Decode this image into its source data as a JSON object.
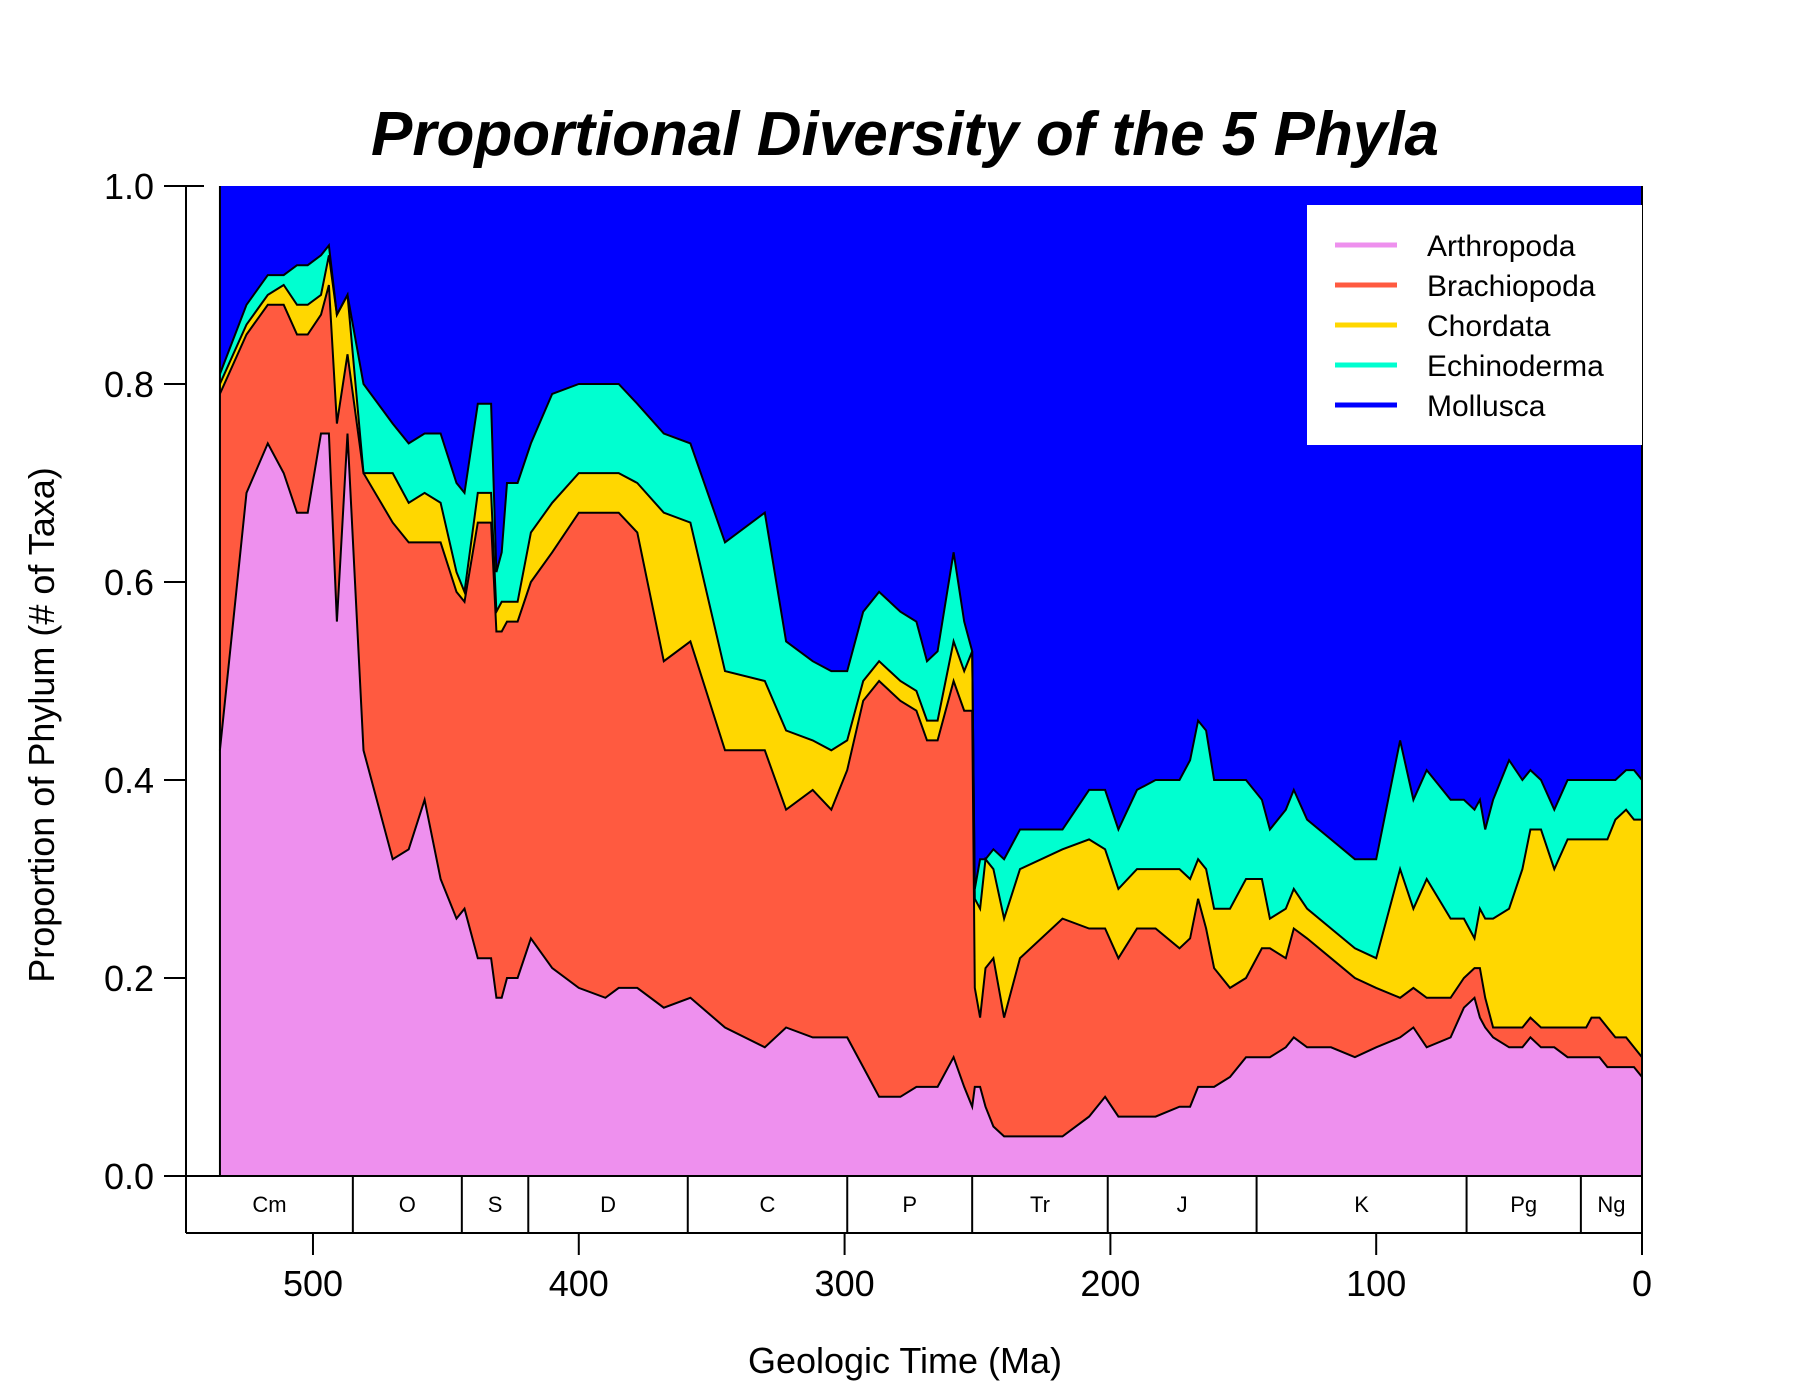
{
  "chart_data": {
    "type": "area",
    "stacked": true,
    "normalized": true,
    "title": "Proportional Diversity of the 5 Phyla",
    "xlabel": "Geologic Time (Ma)",
    "ylabel": "Proportion of Phylum (# of Taxa)",
    "xlim": [
      541,
      0
    ],
    "ylim": [
      0,
      1
    ],
    "x_reversed": true,
    "xticks": [
      500,
      400,
      300,
      200,
      100,
      0
    ],
    "yticks": [
      "0.0",
      "0.2",
      "0.4",
      "0.6",
      "0.8",
      "1.0"
    ],
    "grid": false,
    "legend_position": "top-right",
    "periods": [
      {
        "label": "Cm",
        "start": 541,
        "end": 485
      },
      {
        "label": "O",
        "start": 485,
        "end": 444
      },
      {
        "label": "S",
        "start": 444,
        "end": 419
      },
      {
        "label": "D",
        "start": 419,
        "end": 359
      },
      {
        "label": "C",
        "start": 359,
        "end": 299
      },
      {
        "label": "P",
        "start": 299,
        "end": 252
      },
      {
        "label": "Tr",
        "start": 252,
        "end": 201
      },
      {
        "label": "J",
        "start": 201,
        "end": 145
      },
      {
        "label": "K",
        "start": 145,
        "end": 66
      },
      {
        "label": "Pg",
        "start": 66,
        "end": 23
      },
      {
        "label": "Ng",
        "start": 23,
        "end": 0
      }
    ],
    "x": [
      535,
      525,
      517,
      511,
      506,
      502,
      497,
      494,
      491,
      487,
      481,
      470,
      464,
      458,
      452,
      446,
      443,
      438,
      433,
      431,
      429,
      427,
      423,
      418,
      410,
      400,
      390,
      385,
      378,
      368,
      358,
      345,
      330,
      322,
      312,
      305,
      299,
      293,
      287,
      279,
      273,
      269,
      265,
      259,
      255,
      252,
      251,
      249,
      247,
      244,
      240,
      234,
      218,
      208,
      202,
      197,
      190,
      183,
      174,
      170,
      167,
      164,
      161,
      155,
      149,
      143,
      140,
      134,
      131,
      126,
      117,
      108,
      100,
      91,
      86,
      81,
      72,
      67,
      63,
      61,
      59,
      56,
      50,
      45,
      42,
      38,
      33,
      28,
      23,
      21,
      19,
      16,
      13,
      10,
      6,
      3,
      0
    ],
    "series": [
      {
        "name": "Arthropoda",
        "color": "#EE90EE",
        "values": [
          0.43,
          0.69,
          0.74,
          0.71,
          0.67,
          0.67,
          0.75,
          0.75,
          0.56,
          0.75,
          0.43,
          0.32,
          0.33,
          0.38,
          0.3,
          0.26,
          0.27,
          0.22,
          0.22,
          0.18,
          0.18,
          0.2,
          0.2,
          0.24,
          0.21,
          0.19,
          0.18,
          0.19,
          0.19,
          0.17,
          0.18,
          0.15,
          0.13,
          0.15,
          0.14,
          0.14,
          0.14,
          0.11,
          0.08,
          0.08,
          0.09,
          0.09,
          0.09,
          0.12,
          0.09,
          0.07,
          0.09,
          0.09,
          0.07,
          0.05,
          0.04,
          0.04,
          0.04,
          0.06,
          0.08,
          0.06,
          0.06,
          0.06,
          0.07,
          0.07,
          0.09,
          0.09,
          0.09,
          0.1,
          0.12,
          0.12,
          0.12,
          0.13,
          0.14,
          0.13,
          0.13,
          0.12,
          0.13,
          0.14,
          0.15,
          0.13,
          0.14,
          0.17,
          0.18,
          0.16,
          0.15,
          0.14,
          0.13,
          0.13,
          0.14,
          0.13,
          0.13,
          0.12,
          0.12,
          0.12,
          0.12,
          0.12,
          0.11,
          0.11,
          0.11,
          0.11,
          0.1
        ]
      },
      {
        "name": "Brachiopoda",
        "color": "#FF5A40",
        "values": [
          0.36,
          0.16,
          0.14,
          0.17,
          0.18,
          0.18,
          0.12,
          0.15,
          0.2,
          0.08,
          0.28,
          0.34,
          0.31,
          0.26,
          0.34,
          0.33,
          0.31,
          0.44,
          0.44,
          0.37,
          0.37,
          0.36,
          0.36,
          0.36,
          0.42,
          0.48,
          0.49,
          0.48,
          0.46,
          0.35,
          0.36,
          0.28,
          0.3,
          0.22,
          0.25,
          0.23,
          0.27,
          0.37,
          0.42,
          0.4,
          0.38,
          0.35,
          0.35,
          0.38,
          0.38,
          0.4,
          0.1,
          0.07,
          0.14,
          0.17,
          0.12,
          0.18,
          0.22,
          0.19,
          0.17,
          0.16,
          0.19,
          0.19,
          0.16,
          0.17,
          0.19,
          0.16,
          0.12,
          0.09,
          0.08,
          0.11,
          0.11,
          0.09,
          0.11,
          0.11,
          0.09,
          0.08,
          0.06,
          0.04,
          0.04,
          0.05,
          0.04,
          0.03,
          0.03,
          0.05,
          0.03,
          0.01,
          0.02,
          0.02,
          0.02,
          0.02,
          0.02,
          0.03,
          0.03,
          0.03,
          0.04,
          0.04,
          0.04,
          0.03,
          0.03,
          0.02,
          0.02
        ]
      },
      {
        "name": "Chordata",
        "color": "#FFD700",
        "values": [
          0.01,
          0.01,
          0.01,
          0.02,
          0.03,
          0.03,
          0.02,
          0.03,
          0.11,
          0.06,
          0.0,
          0.05,
          0.04,
          0.05,
          0.04,
          0.02,
          0.01,
          0.03,
          0.03,
          0.02,
          0.03,
          0.02,
          0.02,
          0.05,
          0.05,
          0.04,
          0.04,
          0.04,
          0.05,
          0.15,
          0.12,
          0.08,
          0.07,
          0.08,
          0.05,
          0.06,
          0.03,
          0.02,
          0.02,
          0.02,
          0.02,
          0.02,
          0.02,
          0.04,
          0.04,
          0.06,
          0.09,
          0.11,
          0.11,
          0.09,
          0.1,
          0.09,
          0.07,
          0.09,
          0.08,
          0.07,
          0.06,
          0.06,
          0.08,
          0.06,
          0.04,
          0.06,
          0.06,
          0.08,
          0.1,
          0.07,
          0.03,
          0.05,
          0.04,
          0.03,
          0.03,
          0.03,
          0.03,
          0.13,
          0.08,
          0.12,
          0.08,
          0.06,
          0.03,
          0.06,
          0.08,
          0.11,
          0.12,
          0.16,
          0.19,
          0.2,
          0.16,
          0.19,
          0.19,
          0.19,
          0.18,
          0.18,
          0.19,
          0.22,
          0.23,
          0.23,
          0.24
        ]
      },
      {
        "name": "Echinoderma",
        "color": "#00FFD0",
        "values": [
          0.01,
          0.02,
          0.02,
          0.01,
          0.04,
          0.04,
          0.04,
          0.01,
          0.0,
          0.0,
          0.09,
          0.05,
          0.06,
          0.06,
          0.07,
          0.09,
          0.1,
          0.09,
          0.09,
          0.04,
          0.05,
          0.12,
          0.12,
          0.09,
          0.11,
          0.09,
          0.09,
          0.09,
          0.08,
          0.08,
          0.08,
          0.13,
          0.17,
          0.09,
          0.08,
          0.08,
          0.07,
          0.07,
          0.07,
          0.07,
          0.07,
          0.06,
          0.07,
          0.09,
          0.05,
          0.0,
          0.01,
          0.05,
          0.0,
          0.02,
          0.06,
          0.04,
          0.02,
          0.05,
          0.06,
          0.06,
          0.08,
          0.09,
          0.09,
          0.12,
          0.14,
          0.14,
          0.13,
          0.13,
          0.1,
          0.08,
          0.09,
          0.1,
          0.1,
          0.09,
          0.09,
          0.09,
          0.1,
          0.13,
          0.11,
          0.11,
          0.12,
          0.12,
          0.13,
          0.11,
          0.09,
          0.12,
          0.15,
          0.09,
          0.06,
          0.05,
          0.06,
          0.06,
          0.06,
          0.06,
          0.06,
          0.06,
          0.06,
          0.04,
          0.04,
          0.05,
          0.04
        ]
      },
      {
        "name": "Mollusca",
        "color": "#0000FF",
        "values": [
          0.19,
          0.12,
          0.09,
          0.09,
          0.08,
          0.08,
          0.07,
          0.06,
          0.13,
          0.11,
          0.2,
          0.24,
          0.26,
          0.25,
          0.25,
          0.3,
          0.31,
          0.22,
          0.22,
          0.39,
          0.37,
          0.3,
          0.3,
          0.26,
          0.21,
          0.2,
          0.2,
          0.2,
          0.22,
          0.25,
          0.26,
          0.36,
          0.33,
          0.46,
          0.48,
          0.49,
          0.49,
          0.43,
          0.41,
          0.43,
          0.44,
          0.48,
          0.47,
          0.37,
          0.44,
          0.47,
          0.71,
          0.68,
          0.68,
          0.67,
          0.68,
          0.65,
          0.65,
          0.61,
          0.61,
          0.65,
          0.61,
          0.6,
          0.6,
          0.58,
          0.54,
          0.55,
          0.6,
          0.6,
          0.6,
          0.62,
          0.65,
          0.63,
          0.61,
          0.64,
          0.66,
          0.68,
          0.68,
          0.56,
          0.62,
          0.59,
          0.62,
          0.62,
          0.63,
          0.62,
          0.65,
          0.63,
          0.58,
          0.6,
          0.59,
          0.6,
          0.63,
          0.6,
          0.6,
          0.6,
          0.6,
          0.6,
          0.6,
          0.6,
          0.59,
          0.59,
          0.6
        ]
      }
    ]
  }
}
